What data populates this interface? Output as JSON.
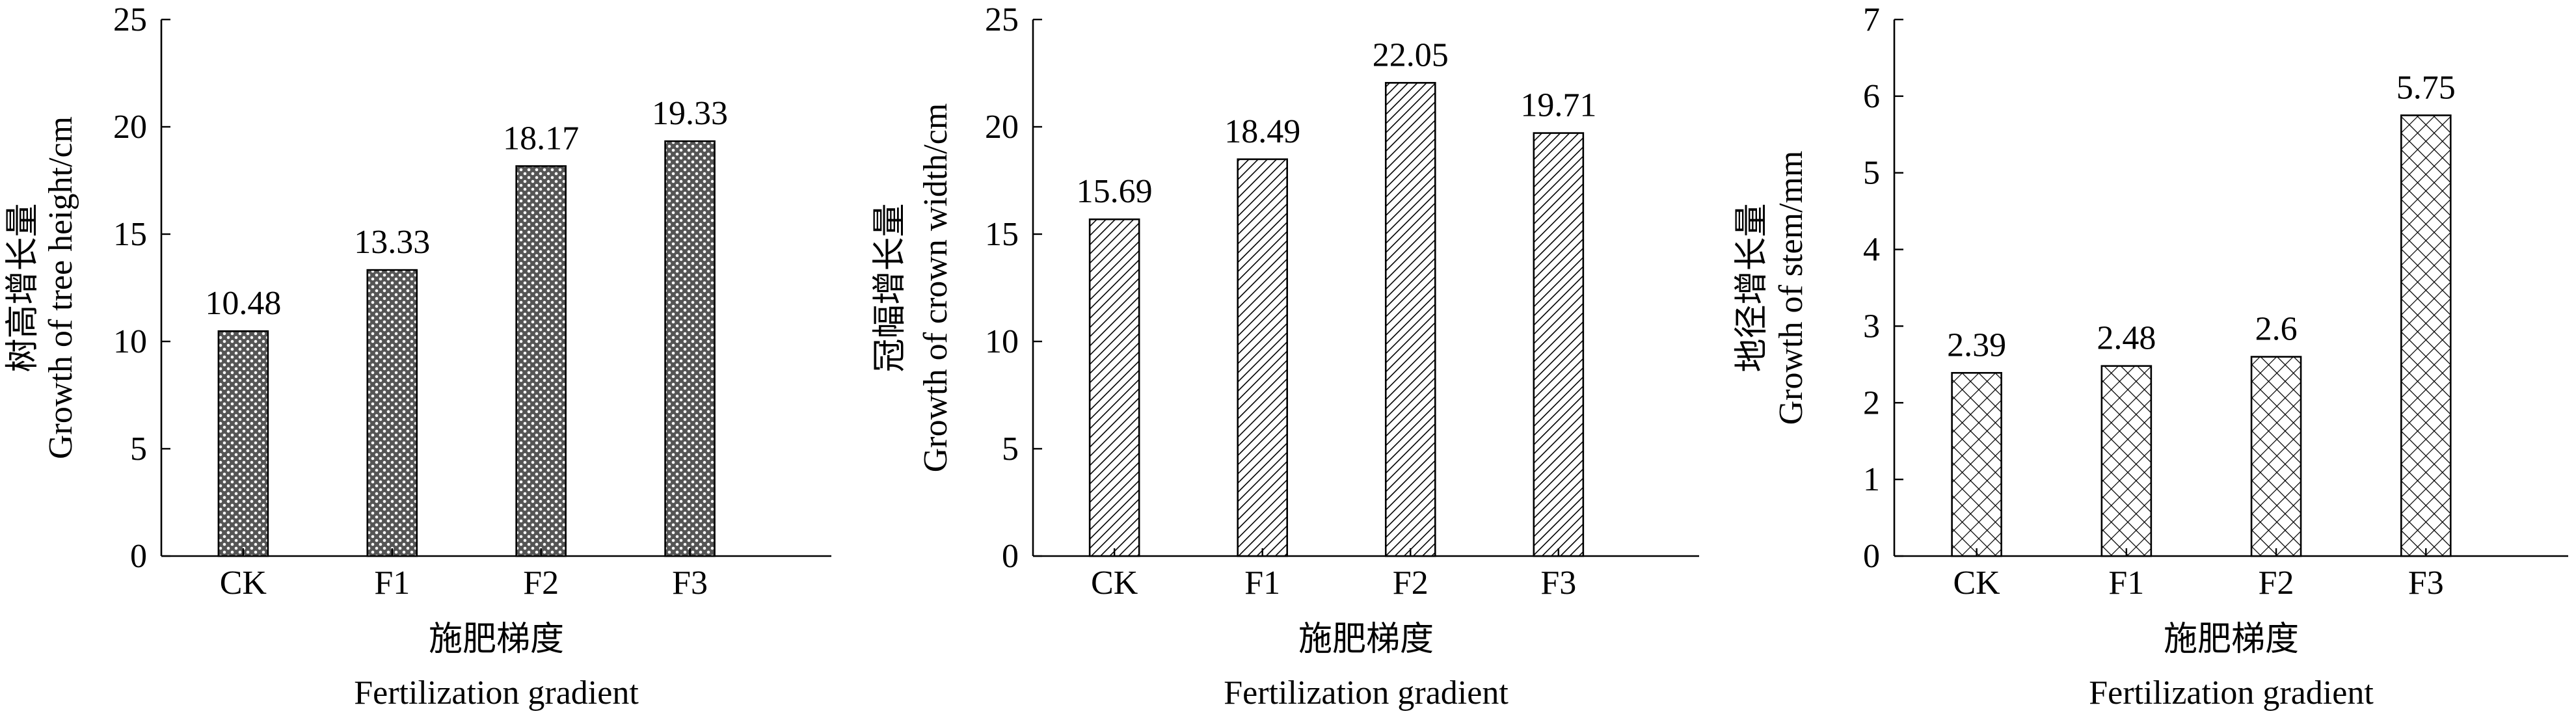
{
  "chart_data": [
    {
      "type": "bar",
      "categories": [
        "CK",
        "F1",
        "F2",
        "F3"
      ],
      "values": [
        10.48,
        13.33,
        18.17,
        19.33
      ],
      "data_labels": [
        "10.48",
        "13.33",
        "18.17",
        "19.33"
      ],
      "ylim": [
        0,
        25
      ],
      "yticks": [
        0,
        5,
        10,
        15,
        20,
        25
      ],
      "ylabel_cn": "树高增长量",
      "ylabel_en": "Growth of tree height/cm",
      "xlabel_cn": "施肥梯度",
      "xlabel_en": "Fertilization gradient",
      "pattern": "dots",
      "grid": false
    },
    {
      "type": "bar",
      "categories": [
        "CK",
        "F1",
        "F2",
        "F3"
      ],
      "values": [
        15.69,
        18.49,
        22.05,
        19.71
      ],
      "data_labels": [
        "15.69",
        "18.49",
        "22.05",
        "19.71"
      ],
      "ylim": [
        0,
        25
      ],
      "yticks": [
        0,
        5,
        10,
        15,
        20,
        25
      ],
      "ylabel_cn": "冠幅增长量",
      "ylabel_en": "Growth of crown width/cm",
      "xlabel_cn": "施肥梯度",
      "xlabel_en": "Fertilization gradient",
      "pattern": "diagonal-hatch",
      "grid": false
    },
    {
      "type": "bar",
      "categories": [
        "CK",
        "F1",
        "F2",
        "F3"
      ],
      "values": [
        2.39,
        2.48,
        2.6,
        5.75
      ],
      "data_labels": [
        "2.39",
        "2.48",
        "2.6",
        "5.75"
      ],
      "ylim": [
        0,
        7
      ],
      "yticks": [
        0,
        1,
        2,
        3,
        4,
        5,
        6,
        7
      ],
      "ylabel_cn": "地径增长量",
      "ylabel_en": "Growth of stem/mm",
      "xlabel_cn": "施肥梯度",
      "xlabel_en": "Fertilization gradient",
      "pattern": "crosshatch",
      "grid": false
    }
  ]
}
